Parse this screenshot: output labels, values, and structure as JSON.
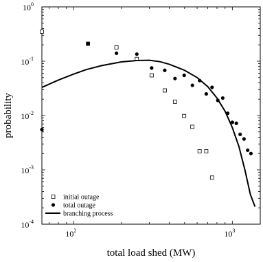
{
  "chart_data": {
    "type": "scatter",
    "title": "",
    "xlabel": "total load shed (MW)",
    "ylabel": "probability",
    "xscale": "log",
    "yscale": "log",
    "xlim": [
      63,
      1500
    ],
    "ylim": [
      0.0001,
      1
    ],
    "grid": false,
    "legend_position": "bottom-left",
    "x_ticks": [
      {
        "base": "10",
        "exp": "2",
        "value": 100
      },
      {
        "base": "10",
        "exp": "3",
        "value": 1000
      }
    ],
    "y_ticks": [
      {
        "base": "10",
        "exp": "0",
        "value": 1
      },
      {
        "base": "10",
        "exp": "-1",
        "value": 0.1
      },
      {
        "base": "10",
        "exp": "-2",
        "value": 0.01
      },
      {
        "base": "10",
        "exp": "-3",
        "value": 0.001
      },
      {
        "base": "10",
        "exp": "-4",
        "value": 0.0001
      }
    ],
    "series": [
      {
        "name": "initial outage",
        "kind": "scatter",
        "marker": "open-square",
        "points": [
          [
            63,
            0.35
          ],
          [
            123,
            0.21
          ],
          [
            186,
            0.18
          ],
          [
            250,
            0.11
          ],
          [
            310,
            0.055
          ],
          [
            375,
            0.029
          ],
          [
            435,
            0.018
          ],
          [
            497,
            0.0098
          ],
          [
            560,
            0.0062
          ],
          [
            622,
            0.0022
          ],
          [
            685,
            0.0022
          ],
          [
            745,
            0.00072
          ]
        ]
      },
      {
        "name": "total outage",
        "kind": "scatter",
        "marker": "filled-circle",
        "points": [
          [
            63,
            0.0055
          ],
          [
            123,
            0.21
          ],
          [
            186,
            0.14
          ],
          [
            250,
            0.135
          ],
          [
            310,
            0.075
          ],
          [
            375,
            0.068
          ],
          [
            435,
            0.048
          ],
          [
            497,
            0.055
          ],
          [
            560,
            0.036
          ],
          [
            622,
            0.044
          ],
          [
            685,
            0.025
          ],
          [
            745,
            0.033
          ],
          [
            810,
            0.019
          ],
          [
            870,
            0.021
          ],
          [
            935,
            0.011
          ],
          [
            1000,
            0.0075
          ],
          [
            1060,
            0.0072
          ],
          [
            1120,
            0.0045
          ],
          [
            1185,
            0.0037
          ],
          [
            1250,
            0.0023
          ],
          [
            1310,
            0.002
          ]
        ]
      },
      {
        "name": "branching process",
        "kind": "line",
        "points": [
          [
            63,
            0.033
          ],
          [
            80,
            0.045
          ],
          [
            100,
            0.058
          ],
          [
            120,
            0.07
          ],
          [
            150,
            0.083
          ],
          [
            200,
            0.097
          ],
          [
            250,
            0.103
          ],
          [
            300,
            0.104
          ],
          [
            350,
            0.098
          ],
          [
            400,
            0.088
          ],
          [
            500,
            0.068
          ],
          [
            600,
            0.05
          ],
          [
            700,
            0.034
          ],
          [
            800,
            0.021
          ],
          [
            900,
            0.012
          ],
          [
            1000,
            0.006
          ],
          [
            1100,
            0.0027
          ],
          [
            1200,
            0.001
          ],
          [
            1300,
            0.00035
          ],
          [
            1390,
            0.00021
          ]
        ]
      }
    ]
  }
}
